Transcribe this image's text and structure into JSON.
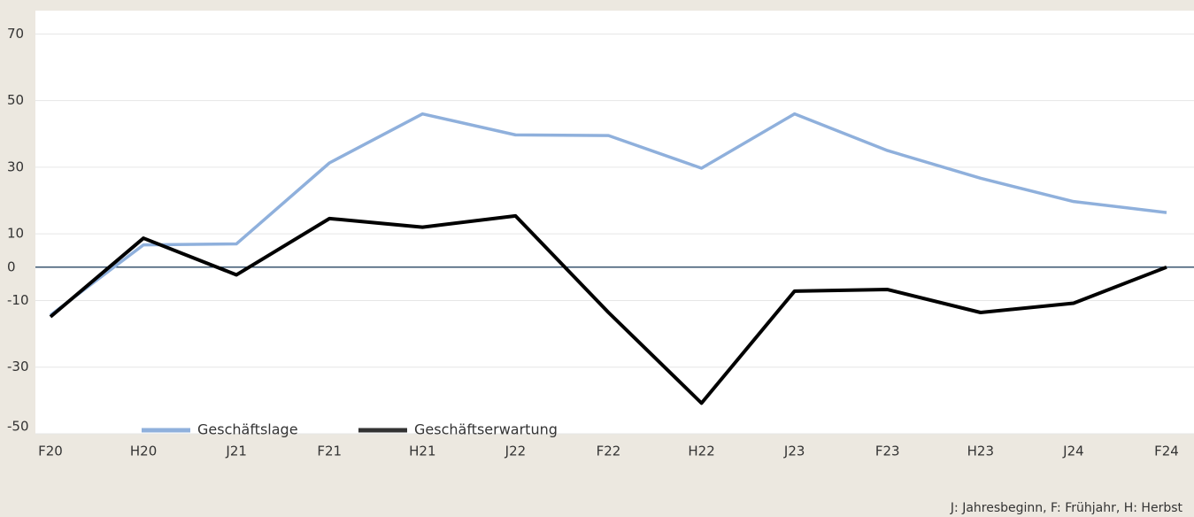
{
  "chart_data": {
    "type": "line",
    "categories": [
      "F20",
      "H20",
      "J21",
      "F21",
      "H21",
      "J22",
      "F22",
      "H22",
      "J23",
      "F23",
      "H23",
      "J24",
      "F24"
    ],
    "series": [
      {
        "name": "Geschäftslage",
        "color": "#8fb0dc",
        "values": [
          -14.4,
          6.7,
          7,
          31.3,
          46,
          39.7,
          39.5,
          29.7,
          46,
          35,
          26.7,
          19.7,
          16.4
        ]
      },
      {
        "name": "Geschäftserwartung",
        "color": "#000000",
        "values": [
          -14.9,
          8.7,
          -2.3,
          14.6,
          12,
          15.4,
          -13.6,
          -40.8,
          -7.2,
          -6.7,
          -13.6,
          -10.8,
          0
        ]
      }
    ],
    "ylim": [
      -50,
      77
    ],
    "yticks": [
      70,
      50,
      30,
      10,
      0,
      -10,
      -30,
      -50
    ],
    "grid": true,
    "zero_line_color": "#3b5670",
    "footnote": "J: Jahresbeginn, F: Frühjahr, H: Herbst"
  }
}
